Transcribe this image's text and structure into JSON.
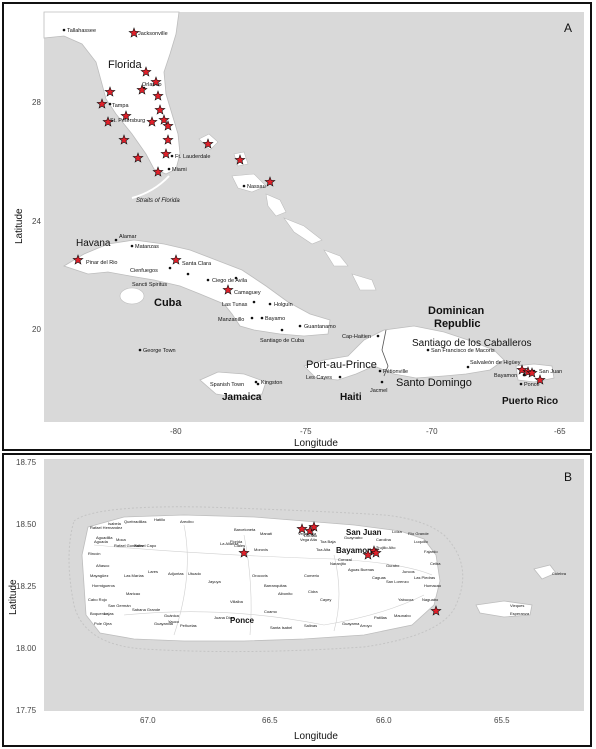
{
  "panel_a": {
    "letter": "A",
    "xlabel": "Longitude",
    "ylabel": "Latitude",
    "xticks": [
      "-80",
      "-75",
      "-70",
      "-65"
    ],
    "yticks": [
      "28",
      "24",
      "20"
    ],
    "regions": [
      {
        "key": "florida",
        "text": "Florida"
      },
      {
        "key": "havana",
        "text": "Havana"
      },
      {
        "key": "cuba",
        "text": "Cuba"
      },
      {
        "key": "dominican",
        "text": "Dominican"
      },
      {
        "key": "republic",
        "text": "Republic"
      },
      {
        "key": "portauprince",
        "text": "Port-au-Prince"
      },
      {
        "key": "santodomingo",
        "text": "Santo Domingo"
      },
      {
        "key": "santiagocab",
        "text": "Santiago de los Caballeros"
      },
      {
        "key": "jamaica",
        "text": "Jamaica"
      },
      {
        "key": "haiti",
        "text": "Haiti"
      },
      {
        "key": "puertorico",
        "text": "Puerto Rico"
      },
      {
        "key": "straits",
        "text": "Straits of Florida"
      }
    ],
    "cities": [
      {
        "key": "tallahassee",
        "text": "Tallahassee"
      },
      {
        "key": "jacksonville",
        "text": "Jacksonville"
      },
      {
        "key": "orlando",
        "text": "Orlando"
      },
      {
        "key": "tampa",
        "text": "Tampa"
      },
      {
        "key": "stpetersburg",
        "text": "St. Petersburg"
      },
      {
        "key": "ftlauderdale",
        "text": "Ft. Lauderdale"
      },
      {
        "key": "miami",
        "text": "Miami"
      },
      {
        "key": "nassau",
        "text": "Nassau"
      },
      {
        "key": "alamar",
        "text": "Alamar"
      },
      {
        "key": "matanzas",
        "text": "Matanzas"
      },
      {
        "key": "pinardelrio",
        "text": "Pinar del Rio"
      },
      {
        "key": "cienfuegos",
        "text": "Cienfuegos"
      },
      {
        "key": "santaclara",
        "text": "Santa Clara"
      },
      {
        "key": "sanctispiritus",
        "text": "Sancti Spiritus"
      },
      {
        "key": "ciegodeavila",
        "text": "Ciego de Avila"
      },
      {
        "key": "camaguey",
        "text": "Camaguey"
      },
      {
        "key": "lastunas",
        "text": "Las Tunas"
      },
      {
        "key": "holguin",
        "text": "Holguin"
      },
      {
        "key": "manzanillo",
        "text": "Manzanillo"
      },
      {
        "key": "bayamo",
        "text": "Bayamo"
      },
      {
        "key": "guantanamo",
        "text": "Guantanamo"
      },
      {
        "key": "santiagocuba",
        "text": "Santiago de Cuba"
      },
      {
        "key": "georgetown",
        "text": "George Town"
      },
      {
        "key": "caphaitien",
        "text": "Cap-Haitien"
      },
      {
        "key": "petionville",
        "text": "Pétionville"
      },
      {
        "key": "lescayes",
        "text": "Les Cayes"
      },
      {
        "key": "jacmel",
        "text": "Jacmel"
      },
      {
        "key": "sanfrancisco",
        "text": "San Francisco de Macoris"
      },
      {
        "key": "salvaleon",
        "text": "Salvaleón de Higüey"
      },
      {
        "key": "sanjuan",
        "text": "San Juan"
      },
      {
        "key": "bayamon",
        "text": "Bayamon"
      },
      {
        "key": "ponce",
        "text": "Ponce"
      },
      {
        "key": "spanishtown",
        "text": "Spanish Town"
      },
      {
        "key": "kingston",
        "text": "Kingston"
      }
    ]
  },
  "panel_b": {
    "letter": "B",
    "xlabel": "Longitude",
    "ylabel": "Latitude",
    "xticks": [
      "67.0",
      "66.5",
      "66.0",
      "65.5"
    ],
    "yticks": [
      "18.75",
      "18.50",
      "18.25",
      "18.00",
      "17.75"
    ],
    "major_labels": [
      {
        "key": "sanjuan",
        "text": "San Juan"
      },
      {
        "key": "bayamon",
        "text": "Bayamon"
      },
      {
        "key": "ponce",
        "text": "Ponce"
      }
    ],
    "towns": [
      {
        "key": "isabela",
        "text": "Isabela"
      },
      {
        "key": "hatillo",
        "text": "Hatillo"
      },
      {
        "key": "arecibo",
        "text": "Arecibo"
      },
      {
        "key": "quebradillas",
        "text": "Quebradillas"
      },
      {
        "key": "rafaelhernandez",
        "text": "Rafael Hernandez"
      },
      {
        "key": "aguadilla",
        "text": "Aguadilla"
      },
      {
        "key": "moca",
        "text": "Moca"
      },
      {
        "key": "rafaelgonzalez",
        "text": "Rafael Gonzalez"
      },
      {
        "key": "rafaelcapo",
        "text": "Rafael Capo"
      },
      {
        "key": "aguada",
        "text": "Aguada"
      },
      {
        "key": "rincon",
        "text": "Rincón"
      },
      {
        "key": "anasco",
        "text": "Añasco"
      },
      {
        "key": "mayaguez",
        "text": "Mayagüez"
      },
      {
        "key": "hormigueros",
        "text": "Hormigueros"
      },
      {
        "key": "caborojo",
        "text": "Cabo Rojo"
      },
      {
        "key": "boqueron",
        "text": "Boquerón"
      },
      {
        "key": "lajas",
        "text": "Lajas"
      },
      {
        "key": "sangerman",
        "text": "San Germán"
      },
      {
        "key": "sabanagrande",
        "text": "Sabana Grande"
      },
      {
        "key": "poladeas",
        "text": "Pole Ojea"
      },
      {
        "key": "guanica",
        "text": "Guánica"
      },
      {
        "key": "yauco",
        "text": "Yauco"
      },
      {
        "key": "penuelas",
        "text": "Peñuelas"
      },
      {
        "key": "guayanilla",
        "text": "Guayanilla"
      },
      {
        "key": "maricao",
        "text": "Maricao"
      },
      {
        "key": "lasmarias",
        "text": "Las Marías"
      },
      {
        "key": "lares",
        "text": "Lares"
      },
      {
        "key": "adjuntas",
        "text": "Adjuntas"
      },
      {
        "key": "utuado",
        "text": "Utuado"
      },
      {
        "key": "jayuya",
        "text": "Jayuya"
      },
      {
        "key": "ciales",
        "text": "Ciales"
      },
      {
        "key": "morovis",
        "text": "Morovis"
      },
      {
        "key": "orocovis",
        "text": "Orocovis"
      },
      {
        "key": "villalba",
        "text": "Villalba"
      },
      {
        "key": "juanadiaz",
        "text": "Juana Díaz"
      },
      {
        "key": "santaisabel",
        "text": "Santa Isabel"
      },
      {
        "key": "coamo",
        "text": "Coamo"
      },
      {
        "key": "aibonito",
        "text": "Aibonito"
      },
      {
        "key": "barranquitas",
        "text": "Barranquitas"
      },
      {
        "key": "comerio",
        "text": "Comerio"
      },
      {
        "key": "cidra",
        "text": "Cidra"
      },
      {
        "key": "cayey",
        "text": "Cayey"
      },
      {
        "key": "salinas",
        "text": "Salinas"
      },
      {
        "key": "guayama",
        "text": "Guayama"
      },
      {
        "key": "arroyo",
        "text": "Arroyo"
      },
      {
        "key": "patillas",
        "text": "Patillas"
      },
      {
        "key": "maunabo",
        "text": "Maunabo"
      },
      {
        "key": "yabucoa",
        "text": "Yabucoa"
      },
      {
        "key": "sanlorenzo",
        "text": "San Lorenzo"
      },
      {
        "key": "caguas",
        "text": "Caguas"
      },
      {
        "key": "gurabo",
        "text": "Gurabo"
      },
      {
        "key": "juncos",
        "text": "Juncos"
      },
      {
        "key": "lasPiedras",
        "text": "Las Piedras"
      },
      {
        "key": "humacao",
        "text": "Humacao"
      },
      {
        "key": "naguabo",
        "text": "Naguabo"
      },
      {
        "key": "ceiba",
        "text": "Ceiba"
      },
      {
        "key": "fajardo",
        "text": "Fajardo"
      },
      {
        "key": "luquillo",
        "text": "Luquillo"
      },
      {
        "key": "riogrande",
        "text": "Río Grande"
      },
      {
        "key": "loiza",
        "text": "Loíza"
      },
      {
        "key": "carolina",
        "text": "Carolina"
      },
      {
        "key": "trujilloalto",
        "text": "Trujillo Alto"
      },
      {
        "key": "guaynabo",
        "text": "Guaynabo"
      },
      {
        "key": "toabaja",
        "text": "Toa Baja"
      },
      {
        "key": "toaalta",
        "text": "Toa Alta"
      },
      {
        "key": "dorado",
        "text": "Dorado"
      },
      {
        "key": "vegabaja",
        "text": "Vega Baja"
      },
      {
        "key": "vegaalta",
        "text": "Vega Alta"
      },
      {
        "key": "manati",
        "text": "Manatí"
      },
      {
        "key": "barceloneta",
        "text": "Barceloneta"
      },
      {
        "key": "florida",
        "text": "Florida"
      },
      {
        "key": "lalianza",
        "text": "La Alianza"
      },
      {
        "key": "naranjito",
        "text": "Naranjito"
      },
      {
        "key": "corozal",
        "text": "Corozal"
      },
      {
        "key": "aguasbuenas",
        "text": "Aguas Buenas"
      },
      {
        "key": "culebra",
        "text": "Culebra"
      },
      {
        "key": "vieques",
        "text": "Vieques"
      },
      {
        "key": "esperanza",
        "text": "Esperanza"
      }
    ]
  },
  "colors": {
    "land": "#ffffff",
    "sea": "#d9d9d9",
    "border": "#111111",
    "star_fill": "#e0202a",
    "star_stroke": "#111111",
    "coast_halo": "#bdbdbd"
  }
}
